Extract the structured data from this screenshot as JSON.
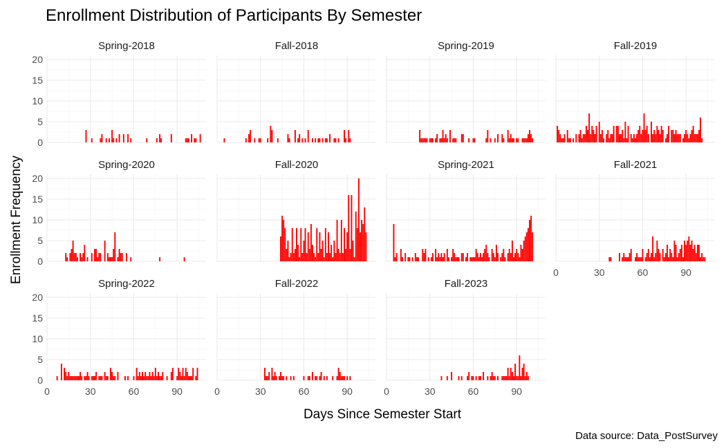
{
  "chart_data": {
    "type": "bar",
    "title": "Enrollment Distribution of Participants By Semester",
    "xlabel": "Days Since Semester Start",
    "ylabel": "Enrollment Frequency",
    "caption": "Data source: Data_PostSurvey",
    "xlim": [
      0,
      110
    ],
    "ylim": [
      0,
      21
    ],
    "x_ticks": [
      0,
      30,
      60,
      90
    ],
    "y_ticks": [
      0,
      5,
      10,
      15,
      20
    ],
    "bar_color": "#ff0000",
    "grid": true,
    "facets": [
      {
        "name": "Spring-2018",
        "x": [
          27,
          31,
          37,
          38,
          41,
          43,
          45,
          46,
          48,
          50,
          53,
          56,
          58,
          69,
          76,
          78,
          79,
          86,
          96,
          97,
          98,
          100,
          102,
          103,
          106
        ],
        "values": [
          3,
          1,
          1,
          2,
          1,
          1,
          3,
          1,
          1,
          2,
          2,
          2,
          1,
          1,
          1,
          2,
          1,
          2,
          1,
          1,
          1,
          2,
          1,
          1,
          2
        ]
      },
      {
        "name": "Fall-2018",
        "x": [
          5,
          20,
          22,
          23,
          26,
          29,
          30,
          35,
          37,
          38,
          42,
          49,
          50,
          54,
          56,
          57,
          59,
          61,
          63,
          66,
          68,
          70,
          71,
          73,
          75,
          76,
          78,
          81,
          82,
          84,
          88,
          89,
          91,
          92
        ],
        "values": [
          1,
          1,
          2,
          3,
          1,
          1,
          1,
          1,
          4,
          3,
          1,
          2,
          1,
          3,
          1,
          2,
          1,
          1,
          3,
          1,
          1,
          1,
          1,
          1,
          1,
          1,
          2,
          1,
          1,
          1,
          3,
          1,
          3,
          1
        ]
      },
      {
        "name": "Spring-2019",
        "x": [
          23,
          24,
          25,
          26,
          27,
          28,
          30,
          31,
          32,
          34,
          35,
          37,
          38,
          39,
          40,
          41,
          42,
          44,
          46,
          47,
          48,
          52,
          53,
          57,
          60,
          61,
          69,
          70,
          72,
          75,
          77,
          80,
          81,
          84,
          85,
          86,
          87,
          88,
          90,
          91,
          94,
          95,
          96,
          97,
          98,
          99,
          100,
          101
        ],
        "values": [
          3,
          1,
          1,
          1,
          1,
          1,
          1,
          1,
          1,
          1,
          2,
          1,
          1,
          3,
          1,
          2,
          1,
          3,
          1,
          1,
          1,
          2,
          2,
          1,
          1,
          1,
          1,
          3,
          1,
          1,
          2,
          2,
          1,
          3,
          1,
          2,
          1,
          1,
          1,
          1,
          1,
          1,
          1,
          1,
          2,
          3,
          2,
          1
        ]
      },
      {
        "name": "Fall-2019",
        "x": [
          1,
          2,
          3,
          4,
          5,
          6,
          8,
          9,
          10,
          12,
          14,
          16,
          17,
          18,
          19,
          20,
          21,
          22,
          23,
          24,
          25,
          26,
          27,
          28,
          30,
          31,
          32,
          33,
          35,
          36,
          37,
          38,
          39,
          40,
          42,
          43,
          44,
          45,
          46,
          47,
          48,
          49,
          50,
          52,
          53,
          54,
          55,
          56,
          57,
          58,
          59,
          60,
          61,
          62,
          63,
          64,
          66,
          67,
          68,
          69,
          70,
          71,
          72,
          73,
          74,
          76,
          77,
          78,
          80,
          81,
          82,
          83,
          84,
          85,
          86,
          88,
          89,
          90,
          91,
          92,
          93,
          94,
          95,
          96,
          97,
          98,
          99,
          100,
          101
        ],
        "values": [
          4,
          3,
          2,
          1,
          1,
          2,
          3,
          1,
          1,
          1,
          2,
          2,
          3,
          1,
          2,
          2,
          4,
          3,
          7,
          2,
          4,
          3,
          2,
          4,
          5,
          2,
          3,
          1,
          2,
          3,
          1,
          2,
          2,
          4,
          4,
          4,
          2,
          2,
          3,
          1,
          5,
          1,
          4,
          2,
          1,
          2,
          1,
          2,
          3,
          4,
          2,
          3,
          7,
          3,
          4,
          2,
          5,
          2,
          3,
          2,
          4,
          3,
          2,
          4,
          3,
          1,
          2,
          4,
          3,
          3,
          2,
          3,
          2,
          2,
          2,
          1,
          2,
          3,
          2,
          1,
          2,
          3,
          4,
          2,
          2,
          2,
          3,
          6,
          1
        ]
      },
      {
        "name": "Spring-2020",
        "x": [
          13,
          14,
          16,
          17,
          18,
          19,
          20,
          21,
          23,
          24,
          25,
          26,
          28,
          31,
          33,
          34,
          35,
          36,
          37,
          40,
          42,
          43,
          44,
          45,
          46,
          47,
          49,
          50,
          51,
          52,
          55,
          58,
          78,
          95
        ],
        "values": [
          2,
          1,
          2,
          3,
          5,
          2,
          2,
          1,
          2,
          1,
          2,
          4,
          1,
          2,
          3,
          3,
          1,
          2,
          2,
          5,
          2,
          1,
          1,
          1,
          3,
          7,
          1,
          3,
          2,
          2,
          2,
          1,
          1,
          1
        ]
      },
      {
        "name": "Fall-2020",
        "x": [
          44,
          45,
          46,
          47,
          48,
          49,
          50,
          51,
          52,
          53,
          54,
          55,
          56,
          57,
          58,
          59,
          60,
          61,
          62,
          63,
          64,
          65,
          66,
          67,
          68,
          69,
          70,
          71,
          72,
          73,
          74,
          75,
          76,
          77,
          78,
          79,
          80,
          81,
          82,
          83,
          84,
          85,
          86,
          87,
          88,
          89,
          90,
          91,
          92,
          93,
          94,
          95,
          96,
          97,
          98,
          99,
          100,
          101,
          102,
          103
        ],
        "values": [
          6,
          11,
          10,
          8,
          3,
          5,
          1,
          2,
          8,
          2,
          3,
          8,
          4,
          1,
          8,
          2,
          5,
          8,
          2,
          7,
          3,
          9,
          4,
          2,
          1,
          8,
          2,
          7,
          3,
          5,
          1,
          8,
          2,
          7,
          2,
          4,
          1,
          5,
          2,
          10,
          3,
          2,
          10,
          2,
          8,
          3,
          7,
          16,
          3,
          16,
          5,
          1,
          12,
          8,
          20,
          7,
          10,
          9,
          13,
          7
        ]
      },
      {
        "name": "Spring-2021",
        "x": [
          5,
          6,
          7,
          10,
          11,
          13,
          15,
          16,
          18,
          20,
          21,
          22,
          25,
          26,
          27,
          29,
          31,
          32,
          34,
          35,
          36,
          37,
          38,
          39,
          40,
          42,
          43,
          45,
          46,
          47,
          48,
          49,
          50,
          52,
          53,
          55,
          56,
          58,
          59,
          60,
          61,
          62,
          63,
          64,
          65,
          66,
          67,
          68,
          69,
          70,
          71,
          73,
          74,
          75,
          76,
          77,
          79,
          80,
          81,
          82,
          84,
          85,
          86,
          87,
          88,
          89,
          90,
          91,
          92,
          93,
          94,
          95,
          96,
          97,
          98,
          99,
          100,
          101
        ],
        "values": [
          9,
          1,
          2,
          3,
          1,
          2,
          1,
          1,
          1,
          2,
          1,
          1,
          3,
          2,
          3,
          1,
          1,
          2,
          3,
          1,
          2,
          1,
          2,
          1,
          2,
          3,
          1,
          1,
          3,
          2,
          1,
          1,
          1,
          2,
          2,
          1,
          2,
          1,
          1,
          1,
          1,
          3,
          2,
          1,
          2,
          1,
          2,
          3,
          4,
          2,
          1,
          3,
          2,
          1,
          4,
          2,
          1,
          2,
          3,
          1,
          2,
          3,
          2,
          5,
          1,
          2,
          3,
          2,
          1,
          4,
          3,
          5,
          6,
          7,
          8,
          10,
          11,
          7
        ]
      },
      {
        "name": "Fall-2021",
        "x": [
          37,
          38,
          44,
          46,
          47,
          48,
          49,
          50,
          51,
          52,
          55,
          56,
          57,
          58,
          59,
          60,
          62,
          63,
          64,
          65,
          66,
          67,
          68,
          69,
          70,
          71,
          72,
          74,
          75,
          76,
          77,
          78,
          79,
          80,
          81,
          82,
          83,
          84,
          85,
          86,
          87,
          88,
          89,
          90,
          91,
          92,
          93,
          94,
          95,
          96,
          97,
          98,
          99,
          100,
          101,
          102,
          103
        ],
        "values": [
          1,
          1,
          2,
          1,
          2,
          1,
          1,
          1,
          2,
          3,
          1,
          2,
          1,
          1,
          1,
          3,
          1,
          2,
          3,
          1,
          2,
          6,
          1,
          2,
          5,
          3,
          2,
          3,
          1,
          2,
          4,
          1,
          3,
          2,
          1,
          5,
          4,
          1,
          2,
          3,
          4,
          1,
          5,
          4,
          5,
          6,
          4,
          5,
          3,
          4,
          2,
          4,
          4,
          1,
          2,
          1,
          1
        ]
      },
      {
        "name": "Spring-2022",
        "x": [
          7,
          10,
          12,
          13,
          14,
          15,
          16,
          17,
          18,
          19,
          20,
          21,
          22,
          23,
          24,
          26,
          27,
          28,
          29,
          31,
          32,
          33,
          34,
          36,
          37,
          38,
          40,
          41,
          42,
          44,
          45,
          46,
          47,
          49,
          54,
          56,
          60,
          62,
          63,
          64,
          65,
          66,
          67,
          68,
          69,
          70,
          71,
          72,
          73,
          74,
          75,
          76,
          77,
          78,
          79,
          80,
          83,
          86,
          87,
          90,
          91,
          92,
          93,
          94,
          95,
          96,
          97,
          98,
          99,
          100,
          101,
          103,
          104
        ],
        "values": [
          1,
          4,
          3,
          2,
          1,
          2,
          1,
          1,
          1,
          1,
          1,
          1,
          1,
          2,
          1,
          1,
          1,
          2,
          1,
          1,
          1,
          1,
          2,
          1,
          1,
          1,
          2,
          1,
          1,
          3,
          2,
          1,
          1,
          2,
          1,
          1,
          1,
          3,
          1,
          2,
          1,
          2,
          1,
          2,
          1,
          1,
          2,
          1,
          2,
          1,
          3,
          1,
          2,
          1,
          1,
          2,
          1,
          2,
          3,
          1,
          3,
          2,
          1,
          3,
          1,
          3,
          2,
          1,
          1,
          1,
          3,
          1,
          3
        ]
      },
      {
        "name": "Fall-2022",
        "x": [
          33,
          34,
          35,
          36,
          38,
          39,
          40,
          41,
          43,
          44,
          45,
          46,
          48,
          51,
          53,
          60,
          63,
          64,
          66,
          68,
          69,
          71,
          72,
          74,
          76,
          80,
          83,
          84,
          85,
          86,
          87,
          88,
          90,
          92
        ],
        "values": [
          3,
          1,
          1,
          2,
          3,
          1,
          2,
          1,
          1,
          2,
          1,
          1,
          1,
          1,
          1,
          1,
          1,
          1,
          2,
          1,
          1,
          1,
          2,
          1,
          1,
          1,
          1,
          3,
          2,
          1,
          1,
          1,
          1,
          1
        ]
      },
      {
        "name": "Fall-2023",
        "x": [
          38,
          42,
          45,
          50,
          52,
          56,
          57,
          59,
          60,
          62,
          64,
          65,
          67,
          70,
          72,
          73,
          74,
          75,
          77,
          80,
          81,
          82,
          83,
          84,
          85,
          86,
          87,
          88,
          89,
          90,
          91,
          92,
          93,
          94,
          95,
          96,
          97,
          98
        ],
        "values": [
          1,
          1,
          2,
          1,
          1,
          1,
          2,
          1,
          1,
          1,
          1,
          1,
          2,
          1,
          1,
          2,
          1,
          1,
          1,
          1,
          1,
          1,
          1,
          3,
          1,
          3,
          2,
          1,
          4,
          1,
          1,
          6,
          1,
          3,
          4,
          1,
          2,
          1
        ]
      }
    ]
  }
}
